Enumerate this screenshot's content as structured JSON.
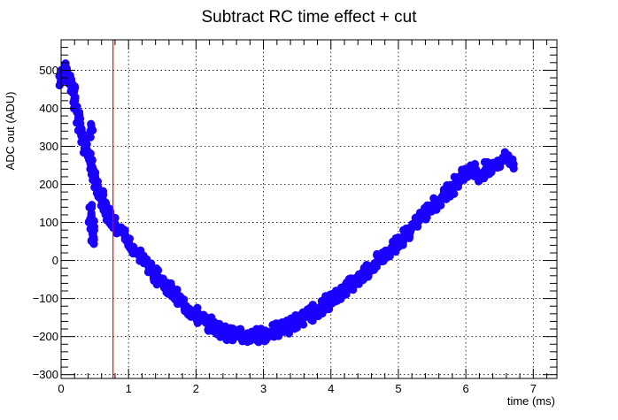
{
  "chart_data": {
    "type": "scatter",
    "title": "Subtract RC time effect + cut",
    "xlabel": "time (ms)",
    "ylabel": "ADC out (ADU)",
    "xlim": [
      0,
      7.35
    ],
    "ylim": [
      -310,
      580
    ],
    "x_ticks": [
      0,
      1,
      2,
      3,
      4,
      5,
      6,
      7
    ],
    "x_tick_labels": [
      "0",
      "1",
      "2",
      "3",
      "4",
      "5",
      "6",
      "7"
    ],
    "y_ticks": [
      -300,
      -200,
      -100,
      0,
      100,
      200,
      300,
      400,
      500
    ],
    "y_tick_labels": [
      "−300",
      "−200",
      "−100",
      "0",
      "100",
      "200",
      "300",
      "400",
      "500"
    ],
    "grid": true,
    "cut_line": {
      "x": 0.77,
      "color": "#ff0000"
    },
    "series": [
      {
        "color": "#1a00ff",
        "points": [
          [
            0.0,
            470
          ],
          [
            0.02,
            490
          ],
          [
            0.04,
            500
          ],
          [
            0.06,
            505
          ],
          [
            0.08,
            498
          ],
          [
            0.1,
            490
          ],
          [
            0.12,
            480
          ],
          [
            0.14,
            470
          ],
          [
            0.16,
            455
          ],
          [
            0.18,
            440
          ],
          [
            0.2,
            420
          ],
          [
            0.22,
            405
          ],
          [
            0.24,
            390
          ],
          [
            0.26,
            375
          ],
          [
            0.28,
            360
          ],
          [
            0.3,
            345
          ],
          [
            0.32,
            330
          ],
          [
            0.34,
            315
          ],
          [
            0.36,
            300
          ],
          [
            0.38,
            290
          ],
          [
            0.4,
            275
          ],
          [
            0.42,
            265
          ],
          [
            0.44,
            340
          ],
          [
            0.44,
            255
          ],
          [
            0.46,
            245
          ],
          [
            0.48,
            230
          ],
          [
            0.5,
            220
          ],
          [
            0.52,
            205
          ],
          [
            0.54,
            195
          ],
          [
            0.56,
            185
          ],
          [
            0.58,
            175
          ],
          [
            0.6,
            165
          ],
          [
            0.62,
            155
          ],
          [
            0.64,
            145
          ],
          [
            0.66,
            135
          ],
          [
            0.68,
            125
          ],
          [
            0.7,
            120
          ],
          [
            0.72,
            115
          ],
          [
            0.74,
            110
          ],
          [
            0.76,
            105
          ],
          [
            0.45,
            140
          ],
          [
            0.46,
            90
          ],
          [
            0.47,
            70
          ],
          [
            0.48,
            60
          ],
          [
            0.44,
            110
          ],
          [
            0.8,
            95
          ],
          [
            0.85,
            85
          ],
          [
            0.9,
            75
          ],
          [
            0.95,
            65
          ],
          [
            1.0,
            50
          ],
          [
            1.05,
            35
          ],
          [
            1.1,
            25
          ],
          [
            1.15,
            15
          ],
          [
            1.2,
            5
          ],
          [
            1.25,
            -5
          ],
          [
            1.3,
            -15
          ],
          [
            1.35,
            -25
          ],
          [
            1.4,
            -35
          ],
          [
            1.45,
            -45
          ],
          [
            1.5,
            -55
          ],
          [
            1.55,
            -65
          ],
          [
            1.6,
            -75
          ],
          [
            1.65,
            -85
          ],
          [
            1.7,
            -95
          ],
          [
            1.75,
            -105
          ],
          [
            1.8,
            -112
          ],
          [
            1.85,
            -120
          ],
          [
            1.9,
            -128
          ],
          [
            1.95,
            -135
          ],
          [
            2.0,
            -142
          ],
          [
            2.05,
            -150
          ],
          [
            2.1,
            -157
          ],
          [
            2.15,
            -163
          ],
          [
            2.2,
            -168
          ],
          [
            2.25,
            -173
          ],
          [
            2.3,
            -178
          ],
          [
            2.35,
            -182
          ],
          [
            2.4,
            -186
          ],
          [
            2.45,
            -190
          ],
          [
            2.5,
            -192
          ],
          [
            2.55,
            -195
          ],
          [
            2.6,
            -197
          ],
          [
            2.65,
            -198
          ],
          [
            2.7,
            -199
          ],
          [
            2.75,
            -200
          ],
          [
            2.8,
            -199
          ],
          [
            2.85,
            -198
          ],
          [
            2.9,
            -197
          ],
          [
            2.95,
            -196
          ],
          [
            3.0,
            -194
          ],
          [
            3.05,
            -192
          ],
          [
            3.1,
            -190
          ],
          [
            3.15,
            -187
          ],
          [
            3.2,
            -184
          ],
          [
            3.25,
            -181
          ],
          [
            3.3,
            -177
          ],
          [
            3.35,
            -173
          ],
          [
            3.4,
            -169
          ],
          [
            3.45,
            -165
          ],
          [
            3.5,
            -160
          ],
          [
            3.55,
            -155
          ],
          [
            3.6,
            -150
          ],
          [
            3.65,
            -145
          ],
          [
            3.7,
            -140
          ],
          [
            3.75,
            -134
          ],
          [
            3.8,
            -128
          ],
          [
            3.85,
            -122
          ],
          [
            3.9,
            -116
          ],
          [
            3.95,
            -110
          ],
          [
            4.0,
            -104
          ],
          [
            4.05,
            -97
          ],
          [
            4.1,
            -90
          ],
          [
            4.15,
            -83
          ],
          [
            4.2,
            -76
          ],
          [
            4.25,
            -69
          ],
          [
            4.3,
            -62
          ],
          [
            4.35,
            -55
          ],
          [
            4.4,
            -47
          ],
          [
            4.45,
            -40
          ],
          [
            4.5,
            -32
          ],
          [
            4.55,
            -24
          ],
          [
            4.6,
            -16
          ],
          [
            4.65,
            -8
          ],
          [
            4.7,
            0
          ],
          [
            4.75,
            8
          ],
          [
            4.8,
            16
          ],
          [
            4.85,
            25
          ],
          [
            4.9,
            33
          ],
          [
            4.95,
            42
          ],
          [
            5.0,
            50
          ],
          [
            5.05,
            59
          ],
          [
            5.1,
            68
          ],
          [
            5.15,
            77
          ],
          [
            5.2,
            86
          ],
          [
            5.25,
            95
          ],
          [
            5.3,
            104
          ],
          [
            5.35,
            113
          ],
          [
            5.4,
            122
          ],
          [
            5.45,
            131
          ],
          [
            5.5,
            140
          ],
          [
            5.55,
            149
          ],
          [
            5.6,
            158
          ],
          [
            5.65,
            167
          ],
          [
            5.7,
            176
          ],
          [
            5.75,
            185
          ],
          [
            5.8,
            194
          ],
          [
            5.85,
            203
          ],
          [
            5.9,
            212
          ],
          [
            5.95,
            221
          ],
          [
            6.0,
            230
          ],
          [
            6.05,
            238
          ],
          [
            6.1,
            246
          ],
          [
            6.15,
            238
          ],
          [
            6.2,
            220
          ],
          [
            6.25,
            230
          ],
          [
            6.3,
            240
          ],
          [
            6.35,
            232
          ],
          [
            6.4,
            245
          ],
          [
            6.45,
            255
          ],
          [
            6.5,
            260
          ],
          [
            6.55,
            268
          ],
          [
            6.6,
            270
          ],
          [
            6.65,
            262
          ],
          [
            6.68,
            255
          ]
        ]
      }
    ]
  }
}
